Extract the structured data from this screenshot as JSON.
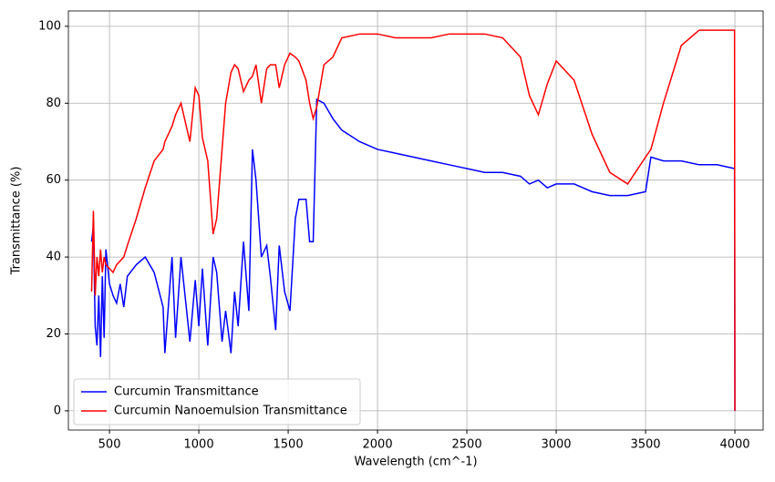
{
  "chart_data": {
    "type": "line",
    "xlabel": "Wavelength (cm^-1)",
    "ylabel": "Transmittance (%)",
    "x": [
      400,
      410,
      420,
      430,
      440,
      450,
      460,
      470,
      480,
      500,
      520,
      540,
      560,
      580,
      600,
      650,
      700,
      750,
      800,
      810,
      850,
      870,
      900,
      950,
      980,
      1000,
      1020,
      1050,
      1080,
      1100,
      1130,
      1150,
      1180,
      1200,
      1220,
      1250,
      1280,
      1300,
      1320,
      1350,
      1380,
      1400,
      1430,
      1450,
      1480,
      1510,
      1540,
      1560,
      1600,
      1620,
      1640,
      1660,
      1700,
      1750,
      1800,
      1900,
      2000,
      2100,
      2200,
      2300,
      2400,
      2500,
      2600,
      2700,
      2800,
      2850,
      2900,
      2950,
      3000,
      3100,
      3200,
      3300,
      3400,
      3500,
      3530,
      3600,
      3700,
      3800,
      3900,
      3998,
      4000
    ],
    "series": [
      {
        "name": "Curcumin Transmittance",
        "color": "#0000ff",
        "values": [
          44,
          48,
          22,
          17,
          30,
          14,
          35,
          19,
          42,
          33,
          30,
          28,
          33,
          27,
          35,
          38,
          40,
          36,
          27,
          15,
          40,
          19,
          40,
          18,
          34,
          22,
          37,
          17,
          40,
          36,
          18,
          26,
          15,
          31,
          22,
          44,
          26,
          68,
          60,
          40,
          43,
          35,
          21,
          43,
          31,
          26,
          50,
          55,
          55,
          44,
          44,
          81,
          80,
          76,
          73,
          70,
          68,
          67,
          66,
          65,
          64,
          63,
          62,
          62,
          61,
          59,
          60,
          58,
          59,
          59,
          57,
          56,
          56,
          57,
          66,
          65,
          65,
          64,
          64,
          63,
          0
        ]
      },
      {
        "name": "Curcumin Nanoemulsion Transmittance",
        "color": "#ff0000",
        "values": [
          31,
          52,
          30,
          40,
          35,
          42,
          36,
          40,
          38,
          37,
          36,
          38,
          39,
          40,
          43,
          50,
          58,
          65,
          68,
          70,
          74,
          77,
          80,
          70,
          84,
          82,
          71,
          65,
          46,
          50,
          68,
          80,
          88,
          90,
          89,
          83,
          86,
          87,
          90,
          80,
          89,
          90,
          90,
          84,
          90,
          93,
          92,
          91,
          86,
          80,
          76,
          79,
          90,
          92,
          97,
          98,
          98,
          97,
          97,
          97,
          98,
          98,
          98,
          97,
          92,
          82,
          77,
          85,
          91,
          86,
          72,
          62,
          59,
          66,
          68,
          80,
          95,
          99,
          99,
          99,
          0
        ]
      }
    ],
    "xlim": [
      270,
      4158
    ],
    "ylim": [
      -5,
      104
    ],
    "xticks": [
      500,
      1000,
      1500,
      2000,
      2500,
      3000,
      3500,
      4000
    ],
    "yticks": [
      0,
      20,
      40,
      60,
      80,
      100
    ],
    "grid": true,
    "legend": "lower left"
  }
}
